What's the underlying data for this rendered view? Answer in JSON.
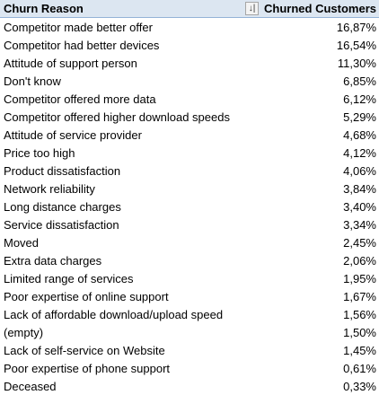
{
  "pivot": {
    "headers": {
      "reason": "Churn Reason",
      "customers": "Churned Customers",
      "sort_icon": "sort-filter-icon"
    },
    "rows": [
      {
        "reason": "Competitor made better offer",
        "value": "16,87%"
      },
      {
        "reason": "Competitor had better devices",
        "value": "16,54%"
      },
      {
        "reason": "Attitude of support person",
        "value": "11,30%"
      },
      {
        "reason": "Don't know",
        "value": "6,85%"
      },
      {
        "reason": "Competitor offered more data",
        "value": "6,12%"
      },
      {
        "reason": "Competitor offered higher download speeds",
        "value": "5,29%"
      },
      {
        "reason": "Attitude of service provider",
        "value": "4,68%"
      },
      {
        "reason": "Price too high",
        "value": "4,12%"
      },
      {
        "reason": "Product dissatisfaction",
        "value": "4,06%"
      },
      {
        "reason": "Network reliability",
        "value": "3,84%"
      },
      {
        "reason": "Long distance charges",
        "value": "3,40%"
      },
      {
        "reason": "Service dissatisfaction",
        "value": "3,34%"
      },
      {
        "reason": "Moved",
        "value": "2,45%"
      },
      {
        "reason": "Extra data charges",
        "value": "2,06%"
      },
      {
        "reason": "Limited range of services",
        "value": "1,95%"
      },
      {
        "reason": "Poor expertise of online support",
        "value": "1,67%"
      },
      {
        "reason": "Lack of affordable download/upload speed",
        "value": "1,56%"
      },
      {
        "reason": "(empty)",
        "value": "1,50%"
      },
      {
        "reason": "Lack of self-service on Website",
        "value": "1,45%"
      },
      {
        "reason": "Poor expertise of phone support",
        "value": "0,61%"
      },
      {
        "reason": "Deceased",
        "value": "0,33%"
      }
    ]
  }
}
